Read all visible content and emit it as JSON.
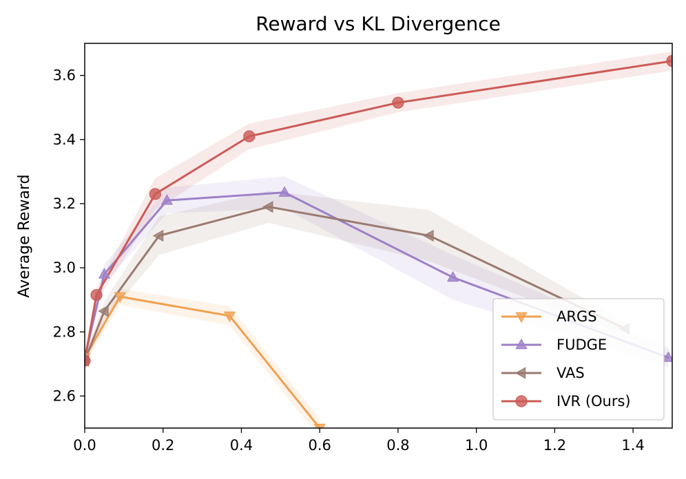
{
  "chart_data": {
    "type": "line",
    "title": "Reward vs KL Divergence",
    "xlabel": "",
    "ylabel": "Average Reward",
    "xlim": [
      0.0,
      1.5
    ],
    "ylim": [
      2.5,
      3.7
    ],
    "xticks": [
      "0.0",
      "0.2",
      "0.4",
      "0.6",
      "0.8",
      "1.0",
      "1.2",
      "1.4"
    ],
    "xtick_values": [
      0.0,
      0.2,
      0.4,
      0.6,
      0.8,
      1.0,
      1.2,
      1.4
    ],
    "yticks": [
      "2.6",
      "2.8",
      "3.0",
      "3.2",
      "3.4",
      "3.6"
    ],
    "ytick_values": [
      2.6,
      2.8,
      3.0,
      3.2,
      3.4,
      3.6
    ],
    "grid": false,
    "legend_position": "bottom-right",
    "series": [
      {
        "name": "ARGS",
        "color": "#f0a050",
        "marker": "triangle-down",
        "x": [
          0.0,
          0.09,
          0.37,
          0.6
        ],
        "y": [
          2.72,
          2.91,
          2.85,
          2.5
        ],
        "band": [
          0.02,
          0.025,
          0.03,
          0.03
        ]
      },
      {
        "name": "FUDGE",
        "color": "#9d80c9",
        "marker": "triangle-up",
        "x": [
          0.0,
          0.05,
          0.21,
          0.51,
          0.94,
          1.49
        ],
        "y": [
          2.72,
          2.98,
          3.21,
          3.235,
          2.97,
          2.72
        ],
        "band": [
          0.02,
          0.03,
          0.04,
          0.05,
          0.07,
          0.03
        ]
      },
      {
        "name": "VAS",
        "color": "#9a7a70",
        "marker": "triangle-left",
        "x": [
          0.0,
          0.05,
          0.19,
          0.47,
          0.88,
          1.38
        ],
        "y": [
          2.71,
          2.865,
          3.1,
          3.19,
          3.1,
          2.81
        ],
        "band": [
          0.02,
          0.03,
          0.06,
          0.05,
          0.08,
          0.02
        ]
      },
      {
        "name": "IVR (Ours)",
        "color": "#cc5a55",
        "marker": "circle",
        "x": [
          0.0,
          0.03,
          0.18,
          0.42,
          0.8,
          1.5
        ],
        "y": [
          2.71,
          2.915,
          3.23,
          3.41,
          3.515,
          3.645
        ],
        "band": [
          0.02,
          0.02,
          0.05,
          0.04,
          0.03,
          0.03
        ]
      }
    ]
  }
}
